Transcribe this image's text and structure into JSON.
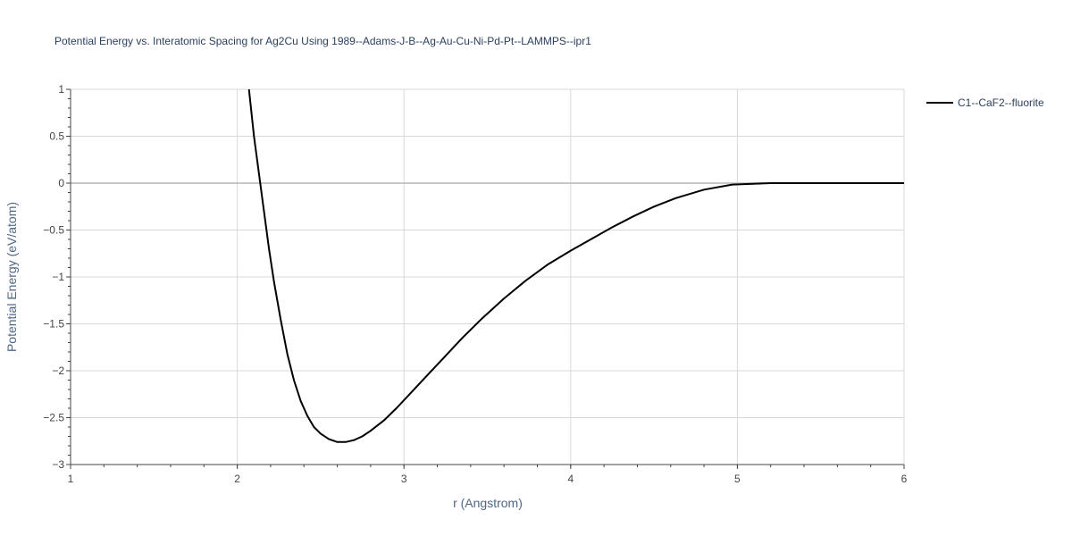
{
  "chart_data": {
    "type": "line",
    "title": "Potential Energy vs. Interatomic Spacing for Ag2Cu Using 1989--Adams-J-B--Ag-Au-Cu-Ni-Pd-Pt--LAMMPS--ipr1",
    "xlabel": "r (Angstrom)",
    "ylabel": "Potential Energy (eV/atom)",
    "xlim": [
      1,
      6
    ],
    "ylim": [
      -3,
      1
    ],
    "x_ticks": [
      "1",
      "2",
      "3",
      "4",
      "5",
      "6"
    ],
    "y_ticks": [
      "1",
      "0.5",
      "0",
      "−0.5",
      "−1",
      "−1.5",
      "−2",
      "−2.5",
      "−3"
    ],
    "grid": true,
    "legend_position": "top-right",
    "colors": {
      "line": "#000000",
      "grid": "#d8d8d8",
      "zeroline": "#c8c8c8",
      "axis": "#444444"
    },
    "series": [
      {
        "name": "C1--CaF2--fluorite",
        "x": [
          2.07,
          2.1,
          2.13,
          2.16,
          2.19,
          2.22,
          2.26,
          2.3,
          2.34,
          2.38,
          2.42,
          2.46,
          2.5,
          2.55,
          2.6,
          2.65,
          2.7,
          2.75,
          2.8,
          2.88,
          2.96,
          3.05,
          3.15,
          3.25,
          3.35,
          3.47,
          3.6,
          3.73,
          3.86,
          4.0,
          4.12,
          4.25,
          4.38,
          4.5,
          4.63,
          4.8,
          4.97,
          5.2,
          5.5,
          6.0
        ],
        "y": [
          1.0,
          0.5,
          0.1,
          -0.3,
          -0.7,
          -1.05,
          -1.45,
          -1.82,
          -2.1,
          -2.32,
          -2.48,
          -2.6,
          -2.67,
          -2.73,
          -2.76,
          -2.76,
          -2.74,
          -2.7,
          -2.64,
          -2.53,
          -2.39,
          -2.22,
          -2.03,
          -1.84,
          -1.65,
          -1.44,
          -1.23,
          -1.04,
          -0.87,
          -0.72,
          -0.6,
          -0.47,
          -0.35,
          -0.25,
          -0.16,
          -0.07,
          -0.015,
          0.0,
          0.0,
          0.0
        ]
      }
    ]
  }
}
